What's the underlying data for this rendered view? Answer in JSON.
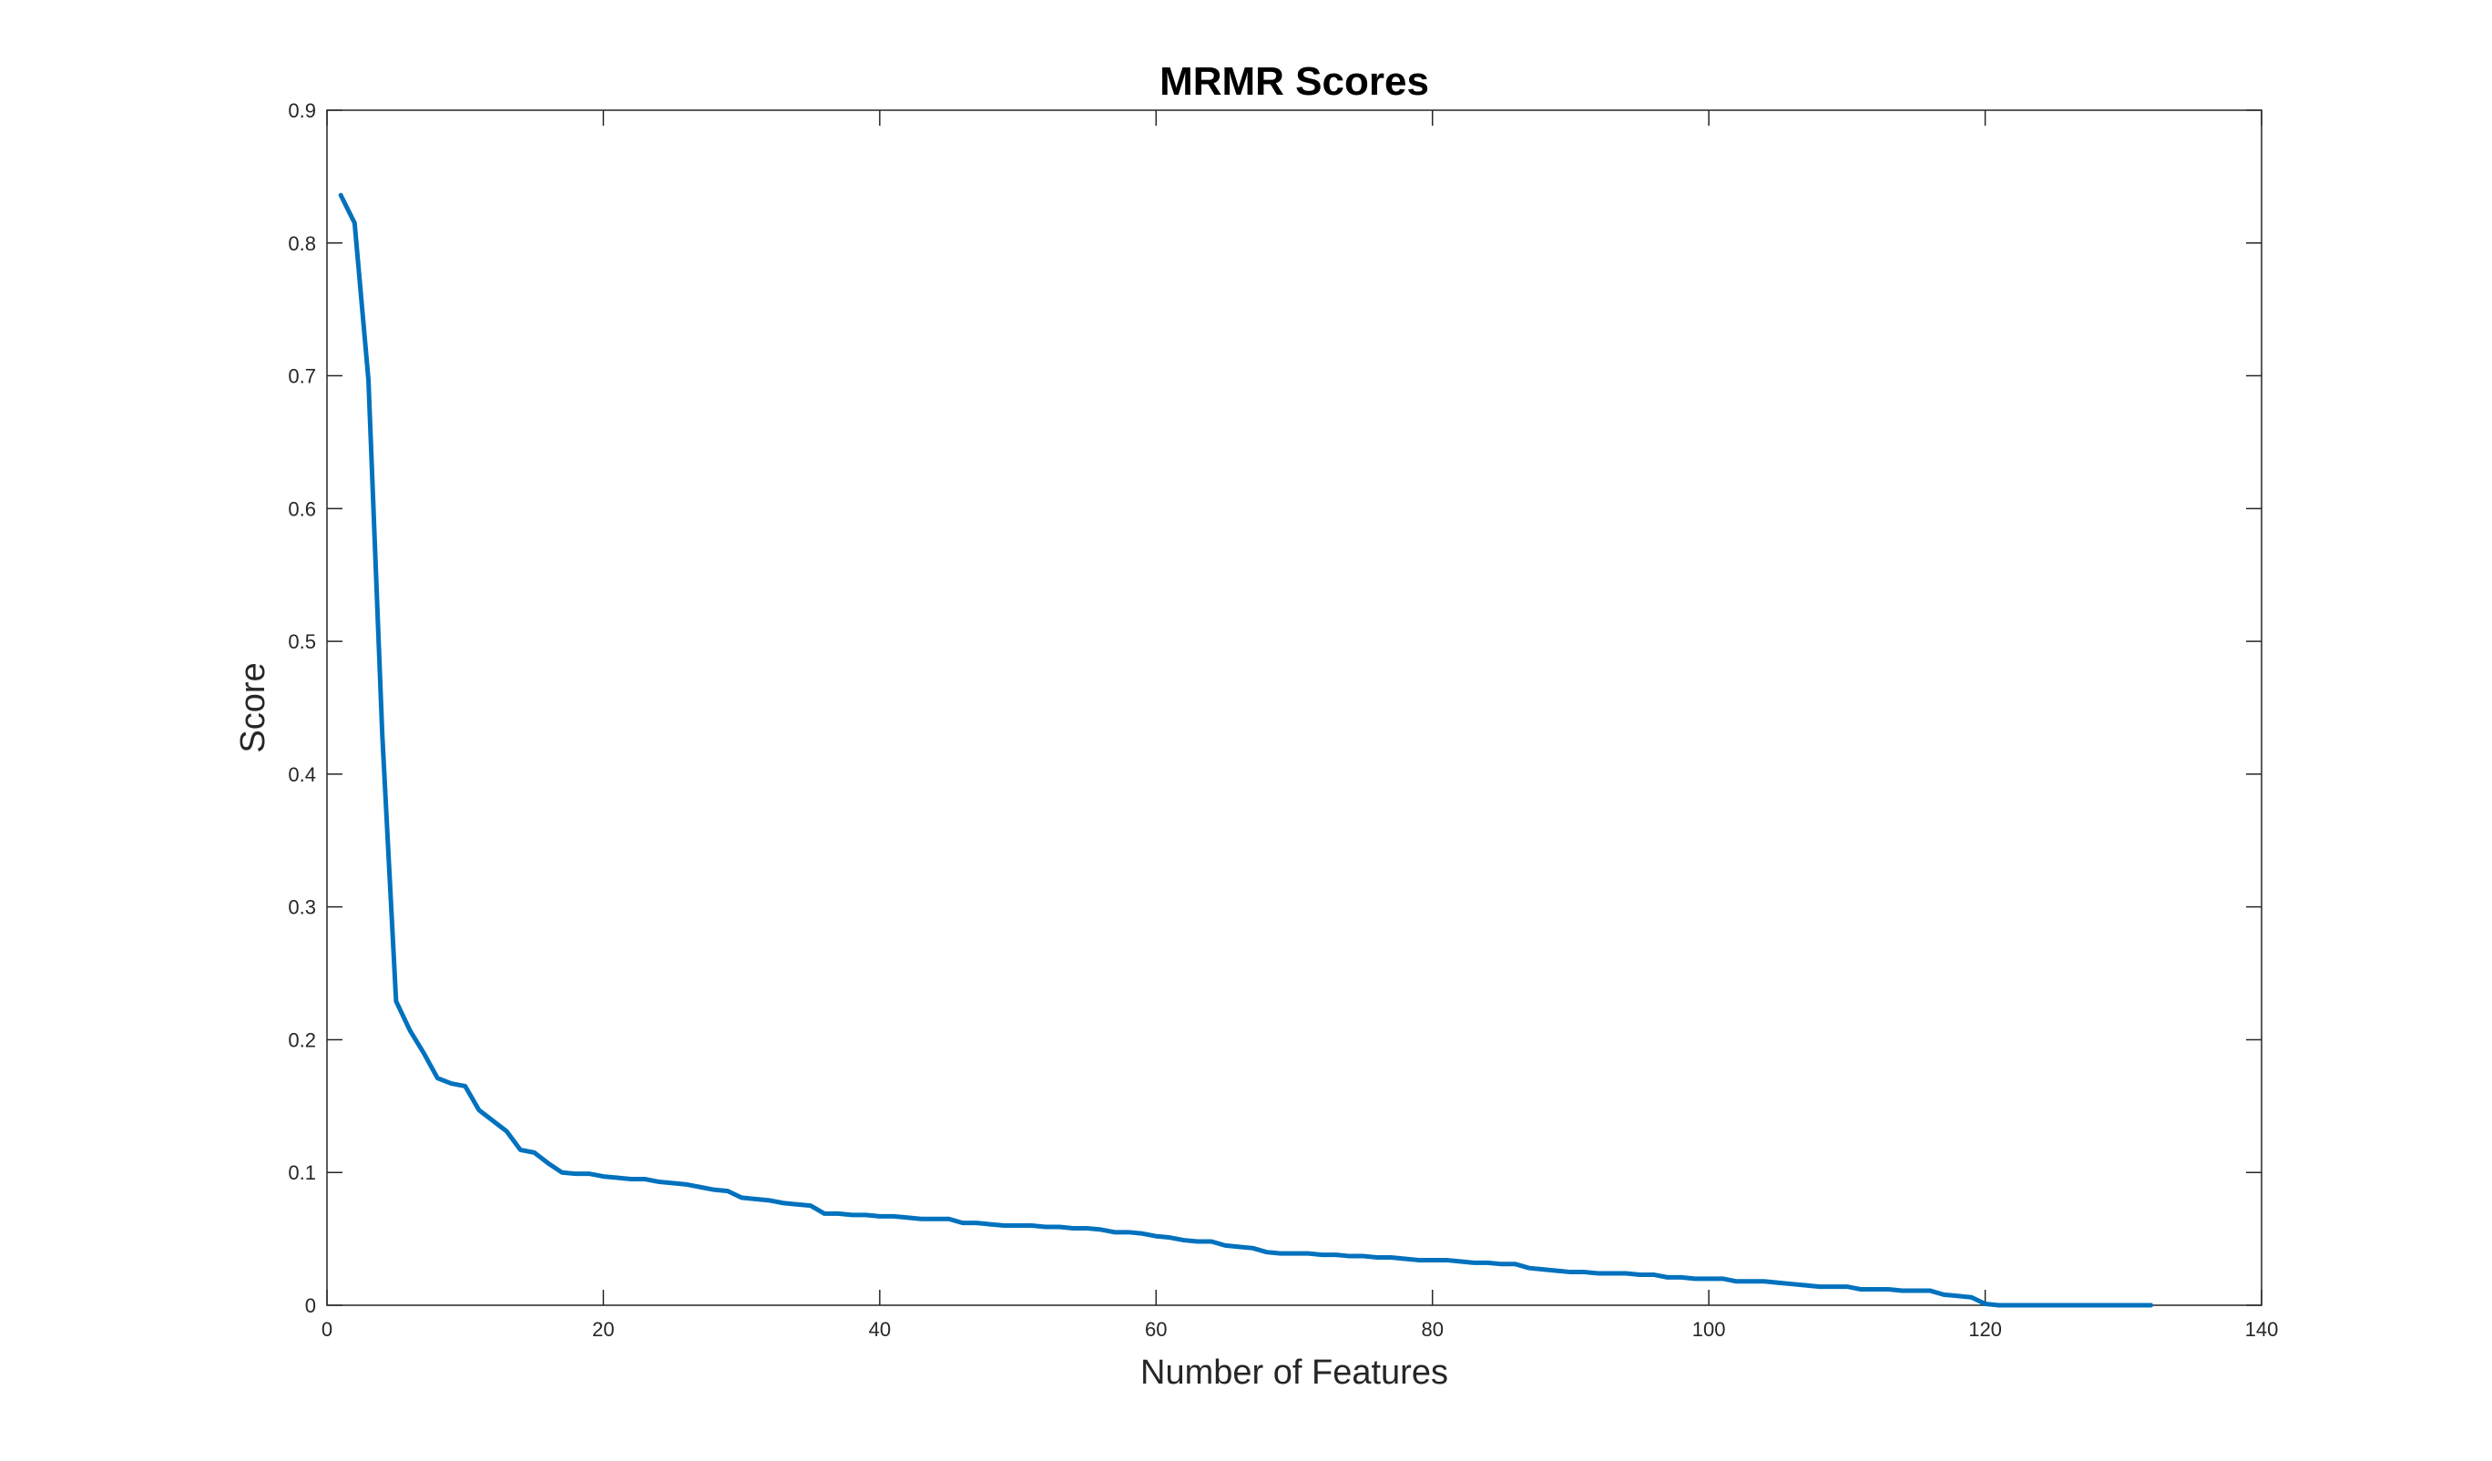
{
  "chart_data": {
    "type": "line",
    "title": "MRMR Scores",
    "xlabel": "Number of Features",
    "ylabel": "Score",
    "xlim": [
      0,
      140
    ],
    "ylim": [
      0,
      0.9
    ],
    "xticks": [
      0,
      20,
      40,
      60,
      80,
      100,
      120,
      140
    ],
    "yticks": [
      0,
      0.1,
      0.2,
      0.3,
      0.4,
      0.5,
      0.6,
      0.7,
      0.8,
      0.9
    ],
    "xtick_labels": [
      "0",
      "20",
      "40",
      "60",
      "80",
      "100",
      "120",
      "140"
    ],
    "ytick_labels": [
      "0",
      "0.1",
      "0.2",
      "0.3",
      "0.4",
      "0.5",
      "0.6",
      "0.7",
      "0.8",
      "0.9"
    ],
    "grid": false,
    "line_color": "#0072BD",
    "series": [
      {
        "x": [
          1,
          2,
          3,
          4,
          5,
          6,
          7,
          8,
          9,
          10,
          11,
          12,
          13,
          14,
          15,
          16,
          17,
          18,
          19,
          20,
          21,
          22,
          23,
          24,
          25,
          26,
          27,
          28,
          29,
          30,
          31,
          32,
          33,
          34,
          35,
          36,
          37,
          38,
          39,
          40,
          41,
          42,
          43,
          44,
          45,
          46,
          47,
          48,
          49,
          50,
          51,
          52,
          53,
          54,
          55,
          56,
          57,
          58,
          59,
          60,
          61,
          62,
          63,
          64,
          65,
          66,
          67,
          68,
          69,
          70,
          71,
          72,
          73,
          74,
          75,
          76,
          77,
          78,
          79,
          80,
          81,
          82,
          83,
          84,
          85,
          86,
          87,
          88,
          89,
          90,
          91,
          92,
          93,
          94,
          95,
          96,
          97,
          98,
          99,
          100,
          101,
          102,
          103,
          104,
          105,
          106,
          107,
          108,
          109,
          110,
          111,
          112,
          113,
          114,
          115,
          116,
          117,
          118,
          119,
          120,
          121,
          122,
          123,
          124,
          125,
          126,
          127,
          128,
          129,
          130,
          131,
          132
        ],
        "values": [
          0.836,
          0.815,
          0.697,
          0.43,
          0.229,
          0.207,
          0.19,
          0.171,
          0.167,
          0.165,
          0.147,
          0.139,
          0.131,
          0.117,
          0.115,
          0.107,
          0.1,
          0.099,
          0.099,
          0.097,
          0.096,
          0.095,
          0.095,
          0.093,
          0.092,
          0.091,
          0.089,
          0.087,
          0.086,
          0.081,
          0.08,
          0.079,
          0.077,
          0.076,
          0.075,
          0.069,
          0.069,
          0.068,
          0.068,
          0.067,
          0.067,
          0.066,
          0.065,
          0.065,
          0.065,
          0.062,
          0.062,
          0.061,
          0.06,
          0.06,
          0.06,
          0.059,
          0.059,
          0.058,
          0.058,
          0.057,
          0.055,
          0.055,
          0.054,
          0.052,
          0.051,
          0.049,
          0.048,
          0.048,
          0.045,
          0.044,
          0.043,
          0.04,
          0.039,
          0.039,
          0.039,
          0.038,
          0.038,
          0.037,
          0.037,
          0.036,
          0.036,
          0.035,
          0.034,
          0.034,
          0.034,
          0.033,
          0.032,
          0.032,
          0.031,
          0.031,
          0.028,
          0.027,
          0.026,
          0.025,
          0.025,
          0.024,
          0.024,
          0.024,
          0.023,
          0.023,
          0.021,
          0.021,
          0.02,
          0.02,
          0.02,
          0.018,
          0.018,
          0.018,
          0.017,
          0.016,
          0.015,
          0.014,
          0.014,
          0.014,
          0.012,
          0.012,
          0.012,
          0.011,
          0.011,
          0.011,
          0.008,
          0.007,
          0.006,
          0.001,
          0,
          0,
          0,
          0,
          0,
          0,
          0,
          0,
          0,
          0,
          0,
          0
        ]
      }
    ]
  }
}
